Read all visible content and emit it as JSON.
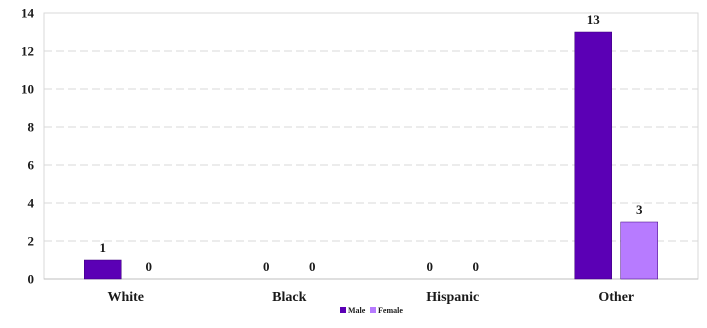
{
  "chart_data": {
    "type": "bar",
    "categories": [
      "White",
      "Black",
      "Hispanic",
      "Other"
    ],
    "series": [
      {
        "name": "Male",
        "values": [
          1,
          0,
          0,
          13
        ],
        "color": "#5b00b5"
      },
      {
        "name": "Female",
        "values": [
          0,
          0,
          0,
          3
        ],
        "color": "#b77bff"
      }
    ],
    "ylim": [
      0,
      14
    ],
    "yticks": [
      0,
      2,
      4,
      6,
      8,
      10,
      12,
      14
    ],
    "grid": true,
    "legend": "bottom-center",
    "title": "",
    "xlabel": "",
    "ylabel": ""
  }
}
